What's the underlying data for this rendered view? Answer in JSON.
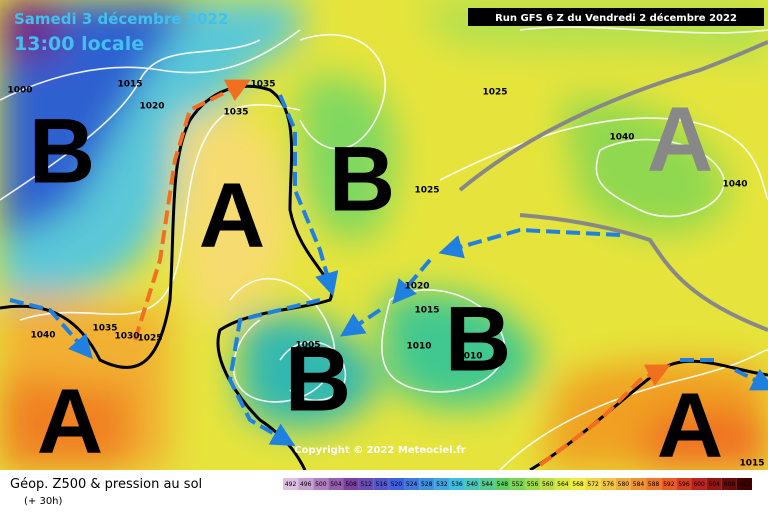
{
  "header": {
    "date": "Samedi 3 décembre 2022",
    "time": "13:00 locale",
    "run": "Run GFS 6 Z du Vendredi 2 décembre 2022"
  },
  "centers": [
    "B",
    "A",
    "B",
    "A",
    "B",
    "B",
    "A",
    "A"
  ],
  "isobar_labels": [
    1000,
    1015,
    1020,
    1035,
    1035,
    1025,
    1040,
    1025,
    1040,
    1040,
    1035,
    1030,
    1025,
    1020,
    1015,
    1005,
    1010,
    1010,
    1015
  ],
  "copyright": "Copyright © 2022 Meteociel.fr",
  "legend": {
    "title": "Géop. Z500 & pression au sol",
    "subtitle": "(+ 30h)",
    "scale": [
      492,
      496,
      500,
      504,
      508,
      512,
      516,
      520,
      524,
      528,
      532,
      536,
      540,
      544,
      548,
      552,
      556,
      560,
      564,
      568,
      572,
      576,
      580,
      584,
      588,
      592,
      596,
      600,
      604,
      608,
      612
    ]
  }
}
